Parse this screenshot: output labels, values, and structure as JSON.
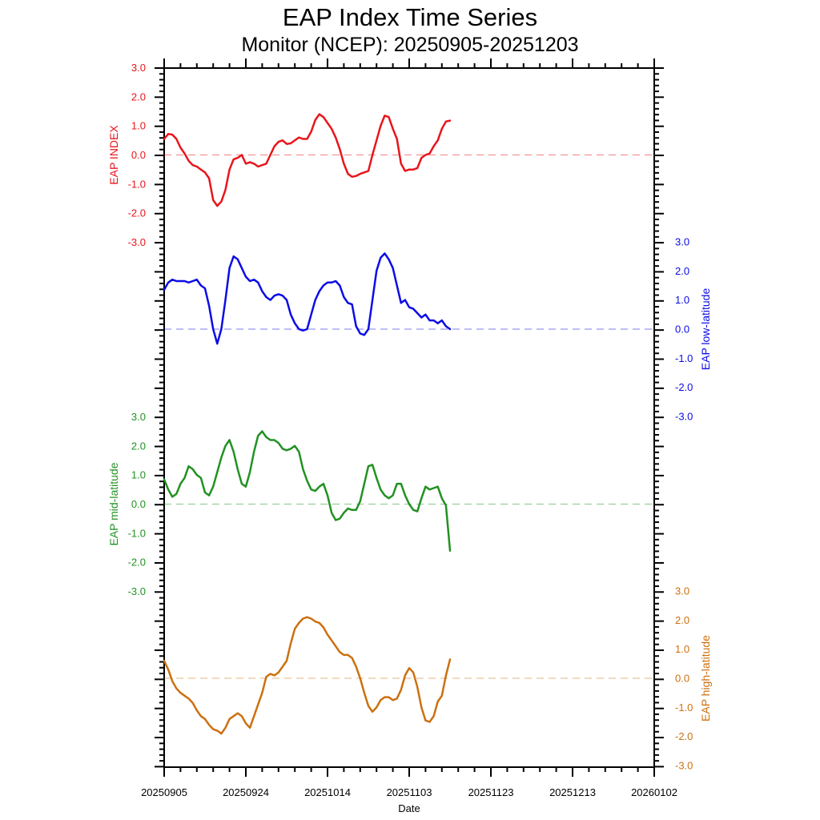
{
  "chart_data": {
    "type": "line",
    "title": "EAP Index Time Series",
    "subtitle": "Monitor (NCEP): 20250905-20251203",
    "xlabel": "Date",
    "x_tick_labels": [
      "20250905",
      "20250924",
      "20251014",
      "20251103",
      "20251123",
      "20251213",
      "20260102"
    ],
    "x_tick_days": [
      0,
      20,
      40,
      60,
      80,
      100,
      120
    ],
    "xlim_days": [
      0,
      120
    ],
    "panel_ylim": [
      -3,
      3
    ],
    "ytick_labels": [
      "3.0",
      "2.0",
      "1.0",
      "0.0",
      "-1.0",
      "-2.0",
      "-3.0"
    ],
    "series": [
      {
        "name": "EAP INDEX",
        "ylabel": "EAP INDEX",
        "color": "#e8151b",
        "axis_side": "left",
        "values": [
          0.55,
          0.72,
          0.7,
          0.55,
          0.25,
          0.05,
          -0.2,
          -0.35,
          -0.4,
          -0.5,
          -0.6,
          -0.8,
          -1.55,
          -1.75,
          -1.6,
          -1.2,
          -0.5,
          -0.15,
          -0.1,
          0.0,
          -0.3,
          -0.25,
          -0.3,
          -0.4,
          -0.35,
          -0.3,
          0.0,
          0.3,
          0.45,
          0.5,
          0.38,
          0.4,
          0.5,
          0.6,
          0.55,
          0.55,
          0.8,
          1.2,
          1.4,
          1.3,
          1.1,
          0.9,
          0.6,
          0.2,
          -0.3,
          -0.65,
          -0.75,
          -0.72,
          -0.65,
          -0.6,
          -0.55,
          0.0,
          0.5,
          1.0,
          1.35,
          1.3,
          0.9,
          0.55,
          -0.3,
          -0.55,
          -0.5,
          -0.5,
          -0.45,
          -0.1,
          0.0,
          0.05,
          0.3,
          0.5,
          0.9,
          1.15,
          1.18
        ]
      },
      {
        "name": "EAP low-latitude",
        "ylabel": "EAP low-latitude",
        "color": "#0c0ce6",
        "axis_side": "right",
        "values": [
          1.35,
          1.6,
          1.7,
          1.65,
          1.65,
          1.65,
          1.6,
          1.65,
          1.7,
          1.5,
          1.4,
          0.8,
          0.0,
          -0.5,
          0.0,
          1.0,
          2.1,
          2.5,
          2.4,
          2.1,
          1.8,
          1.65,
          1.7,
          1.6,
          1.3,
          1.1,
          1.0,
          1.15,
          1.2,
          1.15,
          1.0,
          0.5,
          0.2,
          0.0,
          -0.05,
          0.0,
          0.5,
          1.0,
          1.3,
          1.5,
          1.6,
          1.6,
          1.65,
          1.5,
          1.1,
          0.9,
          0.85,
          0.1,
          -0.15,
          -0.2,
          0.0,
          1.0,
          2.0,
          2.45,
          2.6,
          2.4,
          2.1,
          1.5,
          0.9,
          1.0,
          0.75,
          0.7,
          0.55,
          0.4,
          0.5,
          0.3,
          0.3,
          0.2,
          0.3,
          0.1,
          0.0
        ]
      },
      {
        "name": "EAP mid-latitude",
        "ylabel": "EAP mid-latitude",
        "color": "#229122",
        "axis_side": "left",
        "values": [
          0.85,
          0.5,
          0.25,
          0.35,
          0.7,
          0.9,
          1.3,
          1.2,
          1.0,
          0.9,
          0.4,
          0.3,
          0.6,
          1.1,
          1.6,
          2.0,
          2.2,
          1.8,
          1.2,
          0.7,
          0.6,
          1.1,
          1.8,
          2.35,
          2.5,
          2.3,
          2.2,
          2.2,
          2.1,
          1.9,
          1.85,
          1.9,
          2.0,
          1.8,
          1.2,
          0.8,
          0.5,
          0.45,
          0.6,
          0.7,
          0.3,
          -0.3,
          -0.55,
          -0.5,
          -0.3,
          -0.15,
          -0.2,
          -0.2,
          0.1,
          0.7,
          1.3,
          1.35,
          0.9,
          0.5,
          0.3,
          0.2,
          0.3,
          0.7,
          0.7,
          0.3,
          0.0,
          -0.2,
          -0.25,
          0.2,
          0.6,
          0.5,
          0.55,
          0.6,
          0.2,
          -0.05,
          -1.6
        ]
      },
      {
        "name": "EAP high-latitude",
        "ylabel": "EAP high-latitude",
        "color": "#cc7010",
        "axis_side": "right",
        "values": [
          0.6,
          0.3,
          -0.1,
          -0.35,
          -0.5,
          -0.6,
          -0.7,
          -0.85,
          -1.1,
          -1.3,
          -1.4,
          -1.6,
          -1.75,
          -1.8,
          -1.9,
          -1.7,
          -1.4,
          -1.3,
          -1.2,
          -1.3,
          -1.55,
          -1.7,
          -1.3,
          -0.9,
          -0.5,
          0.05,
          0.15,
          0.1,
          0.2,
          0.4,
          0.6,
          1.2,
          1.7,
          1.9,
          2.05,
          2.1,
          2.05,
          1.95,
          1.9,
          1.75,
          1.5,
          1.3,
          1.1,
          0.9,
          0.8,
          0.8,
          0.7,
          0.4,
          0.0,
          -0.5,
          -0.95,
          -1.15,
          -1.0,
          -0.75,
          -0.65,
          -0.65,
          -0.75,
          -0.7,
          -0.4,
          0.1,
          0.35,
          0.2,
          -0.3,
          -1.0,
          -1.45,
          -1.5,
          -1.3,
          -0.8,
          -0.6,
          0.1,
          0.65
        ]
      }
    ]
  }
}
